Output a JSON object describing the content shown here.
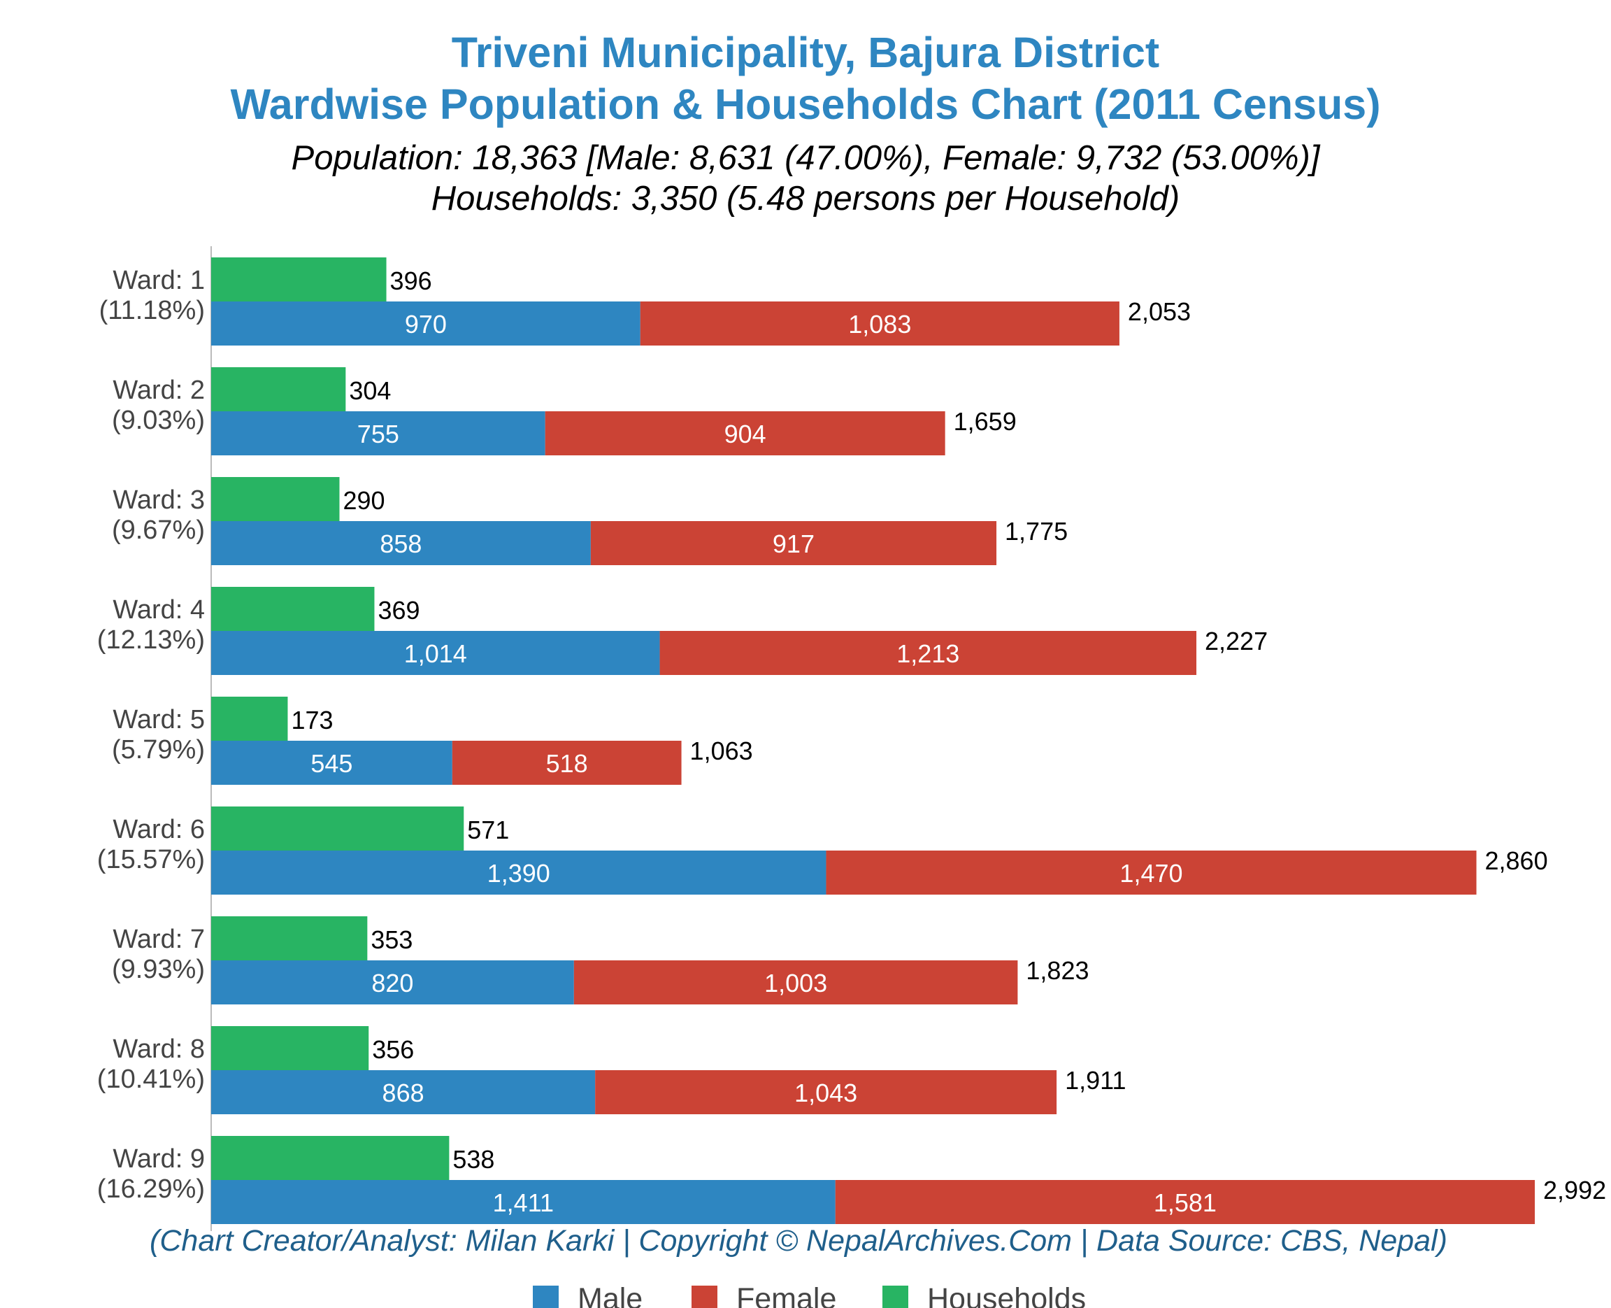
{
  "chart_data": {
    "type": "bar",
    "orientation": "horizontal",
    "title": "Triveni Municipality, Bajura District",
    "title_line2": "Wardwise Population & Households Chart (2011 Census)",
    "subtitle": "Population: 18,363 [Male: 8,631 (47.00%), Female: 9,732 (53.00%)]",
    "subtitle_line2": "Households: 3,350 (5.48 persons per Household)",
    "credit": "(Chart Creator/Analyst: Milan Karki | Copyright © NepalArchives.Com | Data Source: CBS, Nepal)",
    "categories": [
      {
        "ward": "Ward: 1",
        "share": "(11.18%)"
      },
      {
        "ward": "Ward: 2",
        "share": "(9.03%)"
      },
      {
        "ward": "Ward: 3",
        "share": "(9.67%)"
      },
      {
        "ward": "Ward: 4",
        "share": "(12.13%)"
      },
      {
        "ward": "Ward: 5",
        "share": "(5.79%)"
      },
      {
        "ward": "Ward: 6",
        "share": "(15.57%)"
      },
      {
        "ward": "Ward: 7",
        "share": "(9.93%)"
      },
      {
        "ward": "Ward: 8",
        "share": "(10.41%)"
      },
      {
        "ward": "Ward: 9",
        "share": "(16.29%)"
      }
    ],
    "series": [
      {
        "name": "Male",
        "color": "#2e86c1",
        "values": [
          970,
          755,
          858,
          1014,
          545,
          1390,
          820,
          868,
          1411
        ],
        "labels": [
          "970",
          "755",
          "858",
          "1,014",
          "545",
          "1,390",
          "820",
          "868",
          "1,411"
        ]
      },
      {
        "name": "Female",
        "color": "#cb4335",
        "values": [
          1083,
          904,
          917,
          1213,
          518,
          1470,
          1003,
          1043,
          1581
        ],
        "labels": [
          "1,083",
          "904",
          "917",
          "1,213",
          "518",
          "1,470",
          "1,003",
          "1,043",
          "1,581"
        ]
      },
      {
        "name": "Households",
        "color": "#28b463",
        "values": [
          396,
          304,
          290,
          369,
          173,
          571,
          353,
          356,
          538
        ],
        "labels": [
          "396",
          "304",
          "290",
          "369",
          "173",
          "571",
          "353",
          "356",
          "538"
        ]
      }
    ],
    "totals": [
      2053,
      1659,
      1775,
      2227,
      1063,
      2860,
      1823,
      1911,
      2992
    ],
    "total_labels": [
      "2,053",
      "1,659",
      "1,775",
      "2,227",
      "1,063",
      "2,860",
      "1,823",
      "1,911",
      "2,992"
    ],
    "xlim": [
      0,
      3150
    ],
    "grid": false,
    "legend": "bottom"
  }
}
